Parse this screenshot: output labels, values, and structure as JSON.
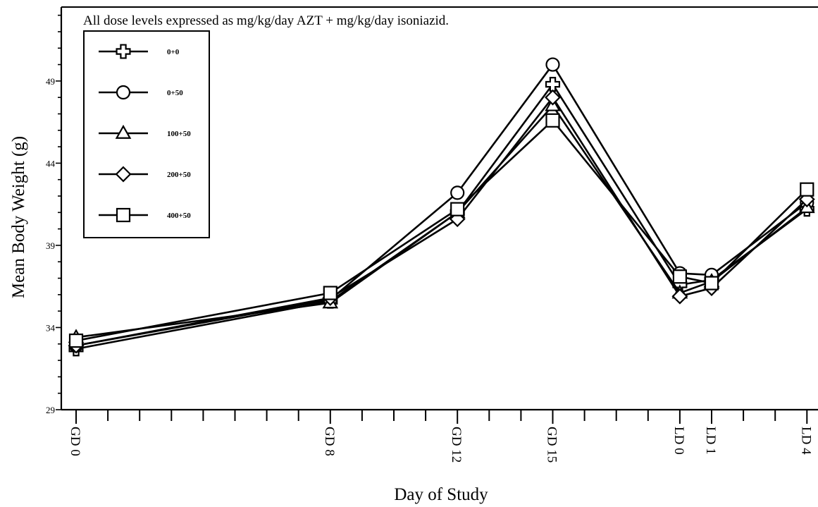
{
  "chart_data": {
    "type": "line",
    "annotation": "All dose levels expressed as mg/kg/day AZT + mg/kg/day isoniazid.",
    "xlabel": "Day of Study",
    "ylabel": "Mean Body Weight (g)",
    "ylim": [
      29,
      53.5
    ],
    "yticks": [
      29,
      34,
      39,
      44,
      49
    ],
    "x_day_range": [
      0,
      24
    ],
    "x_major_ticks": [
      {
        "label": "GD 0",
        "day": 0
      },
      {
        "label": "GD 8",
        "day": 8
      },
      {
        "label": "GD 12",
        "day": 12
      },
      {
        "label": "GD 15",
        "day": 15
      },
      {
        "label": "LD 0",
        "day": 19
      },
      {
        "label": "LD 1",
        "day": 20
      },
      {
        "label": "LD 4",
        "day": 23
      }
    ],
    "x_minor_ticks": [
      1,
      2,
      3,
      4,
      5,
      6,
      7,
      9,
      10,
      11,
      13,
      14,
      16,
      17,
      18,
      21,
      22,
      24
    ],
    "categories": [
      "GD 0",
      "GD 8",
      "GD 12",
      "GD 15",
      "LD 0",
      "LD 1",
      "LD 4"
    ],
    "x": [
      0,
      8,
      12,
      15,
      19,
      20,
      23
    ],
    "legend_position": "top-left",
    "grid": false,
    "series": [
      {
        "name": "0+0",
        "marker": "cross",
        "values": [
          32.7,
          35.6,
          41.0,
          48.8,
          36.6,
          36.9,
          41.2
        ]
      },
      {
        "name": "0+50",
        "marker": "circle",
        "values": [
          32.9,
          35.7,
          42.2,
          50.0,
          37.3,
          37.2,
          41.6
        ]
      },
      {
        "name": "100+50",
        "marker": "triangle",
        "values": [
          33.4,
          35.5,
          41.0,
          47.5,
          36.1,
          36.8,
          41.3
        ]
      },
      {
        "name": "200+50",
        "marker": "diamond",
        "values": [
          32.9,
          35.8,
          40.6,
          48.0,
          35.9,
          36.4,
          41.8
        ]
      },
      {
        "name": "400+50",
        "marker": "square",
        "values": [
          33.2,
          36.1,
          41.2,
          46.6,
          37.1,
          36.7,
          42.4
        ]
      }
    ]
  }
}
